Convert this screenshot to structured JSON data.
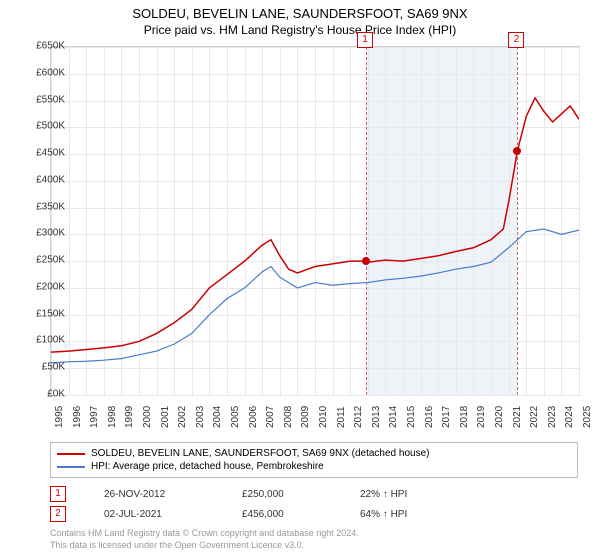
{
  "title": "SOLDEU, BEVELIN LANE, SAUNDERSFOOT, SA69 9NX",
  "subtitle": "Price paid vs. HM Land Registry's House Price Index (HPI)",
  "chart": {
    "type": "line",
    "background_color": "#ffffff",
    "grid_color": "#e8e8e8",
    "border_color": "#d0d0d0",
    "x_years": [
      1995,
      1996,
      1997,
      1998,
      1999,
      2000,
      2001,
      2002,
      2003,
      2004,
      2005,
      2006,
      2007,
      2008,
      2009,
      2010,
      2011,
      2012,
      2013,
      2014,
      2015,
      2016,
      2017,
      2018,
      2019,
      2020,
      2021,
      2022,
      2023,
      2024,
      2025
    ],
    "y_min": 0,
    "y_max": 650000,
    "y_step": 50000,
    "y_prefix": "£",
    "y_suffix": "K",
    "label_fontsize": 10,
    "shade_bands": [
      {
        "from": 2012.9,
        "to": 2021.5,
        "color": "#eef3fa"
      }
    ],
    "markers": [
      {
        "id": "1",
        "year": 2012.9,
        "label_top": true
      },
      {
        "id": "2",
        "year": 2021.5,
        "label_top": true
      }
    ],
    "series": [
      {
        "name": "SOLDEU, BEVELIN LANE, SAUNDERSFOOT, SA69 9NX (detached house)",
        "color": "#cc0000",
        "width": 1.5,
        "points": [
          [
            1995,
            80000
          ],
          [
            1996,
            82000
          ],
          [
            1997,
            85000
          ],
          [
            1998,
            88000
          ],
          [
            1999,
            92000
          ],
          [
            2000,
            100000
          ],
          [
            2001,
            115000
          ],
          [
            2002,
            135000
          ],
          [
            2003,
            160000
          ],
          [
            2004,
            200000
          ],
          [
            2005,
            225000
          ],
          [
            2006,
            250000
          ],
          [
            2007,
            280000
          ],
          [
            2007.5,
            290000
          ],
          [
            2008,
            260000
          ],
          [
            2008.5,
            235000
          ],
          [
            2009,
            228000
          ],
          [
            2010,
            240000
          ],
          [
            2011,
            245000
          ],
          [
            2012,
            250000
          ],
          [
            2012.9,
            250000
          ],
          [
            2013,
            248000
          ],
          [
            2014,
            252000
          ],
          [
            2015,
            250000
          ],
          [
            2016,
            255000
          ],
          [
            2017,
            260000
          ],
          [
            2018,
            268000
          ],
          [
            2019,
            275000
          ],
          [
            2020,
            290000
          ],
          [
            2020.7,
            310000
          ],
          [
            2021,
            360000
          ],
          [
            2021.5,
            456000
          ],
          [
            2022,
            520000
          ],
          [
            2022.5,
            555000
          ],
          [
            2023,
            530000
          ],
          [
            2023.5,
            510000
          ],
          [
            2024,
            525000
          ],
          [
            2024.5,
            540000
          ],
          [
            2025,
            515000
          ]
        ]
      },
      {
        "name": "HPI: Average price, detached house, Pembrokeshire",
        "color": "#4a7bc8",
        "width": 1.2,
        "points": [
          [
            1995,
            60000
          ],
          [
            1996,
            62000
          ],
          [
            1997,
            63000
          ],
          [
            1998,
            65000
          ],
          [
            1999,
            68000
          ],
          [
            2000,
            75000
          ],
          [
            2001,
            82000
          ],
          [
            2002,
            95000
          ],
          [
            2003,
            115000
          ],
          [
            2004,
            150000
          ],
          [
            2005,
            180000
          ],
          [
            2006,
            200000
          ],
          [
            2007,
            230000
          ],
          [
            2007.5,
            240000
          ],
          [
            2008,
            220000
          ],
          [
            2009,
            200000
          ],
          [
            2010,
            210000
          ],
          [
            2011,
            205000
          ],
          [
            2012,
            208000
          ],
          [
            2013,
            210000
          ],
          [
            2014,
            215000
          ],
          [
            2015,
            218000
          ],
          [
            2016,
            222000
          ],
          [
            2017,
            228000
          ],
          [
            2018,
            235000
          ],
          [
            2019,
            240000
          ],
          [
            2020,
            248000
          ],
          [
            2021,
            275000
          ],
          [
            2022,
            305000
          ],
          [
            2023,
            310000
          ],
          [
            2024,
            300000
          ],
          [
            2025,
            308000
          ]
        ]
      }
    ],
    "sale_dots": [
      {
        "year": 2012.9,
        "value": 250000,
        "color": "#cc0000"
      },
      {
        "year": 2021.5,
        "value": 456000,
        "color": "#cc0000"
      }
    ]
  },
  "legend": {
    "items": [
      {
        "color": "#cc0000",
        "label": "SOLDEU, BEVELIN LANE, SAUNDERSFOOT, SA69 9NX (detached house)"
      },
      {
        "color": "#4a7bc8",
        "label": "HPI: Average price, detached house, Pembrokeshire"
      }
    ]
  },
  "sales": [
    {
      "id": "1",
      "date": "26-NOV-2012",
      "price": "£250,000",
      "delta": "22% ↑ HPI"
    },
    {
      "id": "2",
      "date": "02-JUL-2021",
      "price": "£456,000",
      "delta": "64% ↑ HPI"
    }
  ],
  "footer": {
    "line1": "Contains HM Land Registry data © Crown copyright and database right 2024.",
    "line2": "This data is licensed under the Open Government Licence v3.0."
  }
}
